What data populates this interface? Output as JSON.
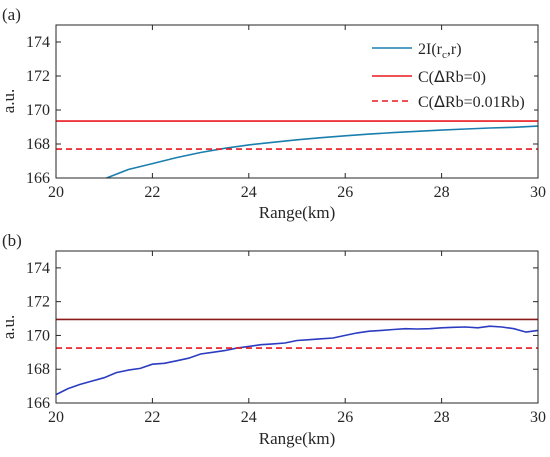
{
  "chart_data": [
    {
      "type": "line",
      "panel_label": "(a)",
      "xlabel": "Range(km)",
      "ylabel": "a.u.",
      "xlim": [
        20,
        30
      ],
      "ylim": [
        166,
        175
      ],
      "xticks": [
        20,
        22,
        24,
        26,
        28,
        30
      ],
      "yticks": [
        166,
        168,
        170,
        172,
        174
      ],
      "grid": false,
      "legend": "top-right",
      "series": [
        {
          "name_parts": [
            "2I(r",
            "c",
            ",r)"
          ],
          "color": "#1a7fae",
          "style": "solid",
          "x": [
            21.05,
            21.5,
            22,
            22.5,
            23,
            23.5,
            24,
            24.5,
            25,
            25.5,
            26,
            26.5,
            27,
            27.5,
            28,
            28.5,
            29,
            29.5,
            30
          ],
          "y": [
            166.0,
            166.5,
            166.85,
            167.2,
            167.5,
            167.75,
            167.95,
            168.1,
            168.25,
            168.37,
            168.48,
            168.58,
            168.67,
            168.75,
            168.82,
            168.88,
            168.94,
            168.98,
            169.05
          ]
        },
        {
          "name_parts": [
            "C(",
            "Δ",
            "Rb=0)"
          ],
          "color": "#e8191f",
          "style": "solid",
          "x": [
            20,
            30
          ],
          "y": [
            169.35,
            169.35
          ]
        },
        {
          "name_parts": [
            "C(",
            "Δ",
            "Rb=0.01Rb)"
          ],
          "color": "#e8191f",
          "style": "dashed",
          "x": [
            20,
            30
          ],
          "y": [
            167.7,
            167.7
          ]
        }
      ]
    },
    {
      "type": "line",
      "panel_label": "(b)",
      "xlabel": "Range(km)",
      "ylabel": "a.u.",
      "xlim": [
        20,
        30
      ],
      "ylim": [
        166,
        175
      ],
      "xticks": [
        20,
        22,
        24,
        26,
        28,
        30
      ],
      "yticks": [
        166,
        168,
        170,
        172,
        174
      ],
      "grid": false,
      "legend": "none",
      "series": [
        {
          "color": "#2b3cc0",
          "style": "solid",
          "x": [
            20,
            20.25,
            20.5,
            20.75,
            21,
            21.25,
            21.5,
            21.75,
            22,
            22.25,
            22.5,
            22.75,
            23,
            23.25,
            23.5,
            23.75,
            24,
            24.25,
            24.5,
            24.75,
            25,
            25.25,
            25.5,
            25.75,
            26,
            26.25,
            26.5,
            26.75,
            27,
            27.25,
            27.5,
            27.75,
            28,
            28.25,
            28.5,
            28.75,
            29,
            29.25,
            29.5,
            29.75,
            30
          ],
          "y": [
            166.5,
            166.85,
            167.1,
            167.3,
            167.5,
            167.8,
            167.95,
            168.05,
            168.3,
            168.35,
            168.5,
            168.65,
            168.9,
            169.0,
            169.1,
            169.25,
            169.35,
            169.45,
            169.5,
            169.55,
            169.7,
            169.75,
            169.8,
            169.85,
            170.0,
            170.15,
            170.25,
            170.3,
            170.35,
            170.4,
            170.38,
            170.4,
            170.45,
            170.48,
            170.5,
            170.45,
            170.55,
            170.5,
            170.4,
            170.2,
            170.3
          ]
        },
        {
          "color": "#8b1a1a",
          "style": "solid",
          "x": [
            20,
            30
          ],
          "y": [
            170.95,
            170.95
          ]
        },
        {
          "color": "#e8191f",
          "style": "dashed",
          "x": [
            20,
            30
          ],
          "y": [
            169.25,
            169.25
          ]
        }
      ]
    }
  ]
}
